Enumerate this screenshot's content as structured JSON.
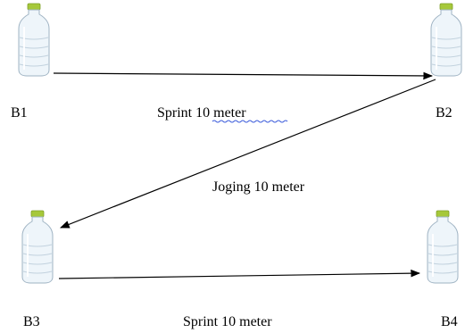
{
  "stations": [
    {
      "id": "b1",
      "label": "B1"
    },
    {
      "id": "b2",
      "label": "B2"
    },
    {
      "id": "b3",
      "label": "B3"
    },
    {
      "id": "b4",
      "label": "B4"
    }
  ],
  "segments": [
    {
      "from": "B1",
      "to": "B2",
      "label": "Sprint 10 meter"
    },
    {
      "from": "B2",
      "to": "B3",
      "label": "Joging 10 meter"
    },
    {
      "from": "B3",
      "to": "B4",
      "label": "Sprint 10 meter"
    }
  ],
  "colors": {
    "cap": "#a6c83a",
    "bottle_fill": "#eef5fa",
    "bottle_outline": "#9fb3c3",
    "arrow": "#000000",
    "spell_underline": "#3b5bdb"
  }
}
